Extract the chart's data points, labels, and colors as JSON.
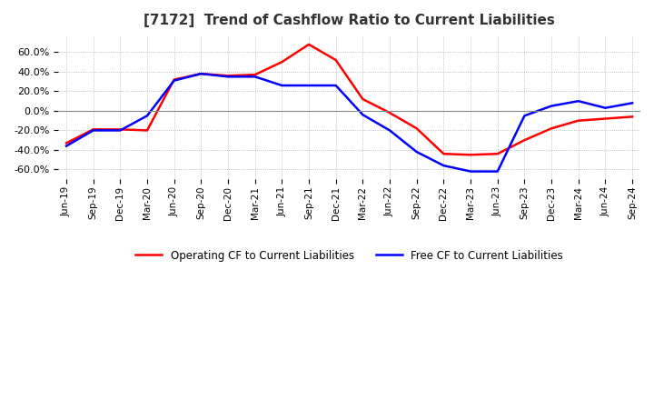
{
  "title": "[7172]  Trend of Cashflow Ratio to Current Liabilities",
  "title_fontsize": 11,
  "x_labels": [
    "Jun-19",
    "Sep-19",
    "Dec-19",
    "Mar-20",
    "Jun-20",
    "Sep-20",
    "Dec-20",
    "Mar-21",
    "Jun-21",
    "Sep-21",
    "Dec-21",
    "Mar-22",
    "Jun-22",
    "Sep-22",
    "Dec-22",
    "Mar-23",
    "Jun-23",
    "Sep-23",
    "Dec-23",
    "Mar-24",
    "Jun-24",
    "Sep-24"
  ],
  "ylim": [
    -70,
    78
  ],
  "yticks": [
    -60,
    -40,
    -20,
    0,
    20,
    40,
    60
  ],
  "operating_cf": [
    -33,
    -19,
    -19,
    -20,
    32,
    38,
    36,
    37,
    50,
    68,
    52,
    12,
    -2,
    -18,
    -44,
    -45,
    -44,
    -30,
    -18,
    -10,
    -8,
    -6
  ],
  "free_cf": [
    -36,
    -20,
    -20,
    -5,
    31,
    38,
    35,
    35,
    26,
    26,
    26,
    -4,
    -20,
    -42,
    -56,
    -62,
    -62,
    -5,
    5,
    10,
    3,
    8
  ],
  "operating_color": "#ff0000",
  "free_color": "#0000ff",
  "background_color": "#ffffff",
  "grid_color": "#aaaaaa",
  "title_color": "#333333",
  "legend_operating": "Operating CF to Current Liabilities",
  "legend_free": "Free CF to Current Liabilities"
}
